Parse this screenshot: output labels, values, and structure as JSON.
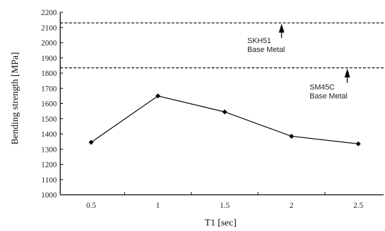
{
  "chart_data": {
    "type": "line",
    "title": "",
    "xlabel": "T1 [sec]",
    "ylabel": "Bending strength [MPa]",
    "categories": [
      "0.5",
      "1",
      "1.5",
      "2",
      "2.5"
    ],
    "x": [
      0.5,
      1,
      1.5,
      2,
      2.5
    ],
    "y_ticks": [
      1000,
      1100,
      1200,
      1300,
      1400,
      1500,
      1600,
      1700,
      1800,
      1900,
      2000,
      2100,
      2200
    ],
    "ylim": [
      1000,
      2200
    ],
    "grid": false,
    "series": [
      {
        "values": [
          1345,
          1650,
          1545,
          1385,
          1335
        ],
        "marker": "diamond",
        "color": "#000000"
      }
    ],
    "reference_lines": [
      {
        "value": 2130,
        "style": "dashed",
        "label_lines": [
          "SKH51",
          "Base Metal"
        ]
      },
      {
        "value": 1835,
        "style": "dashed",
        "label_lines": [
          "SM45C",
          "Base Metal"
        ]
      }
    ]
  }
}
